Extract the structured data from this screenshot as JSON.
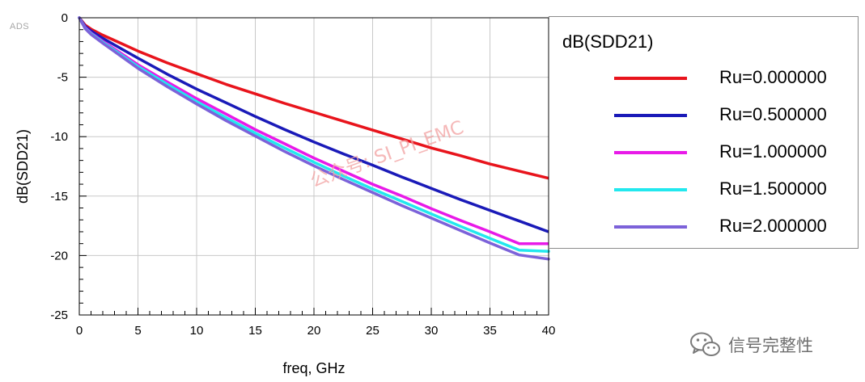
{
  "app_tag": "ADS",
  "footer_brand": "信号完整性",
  "overlay_watermark": "公众号: SI_PI_EMC",
  "chart_data": {
    "type": "line",
    "title": "",
    "xlabel": "freq, GHz",
    "ylabel": "dB(SDD21)",
    "xlim": [
      0,
      40
    ],
    "ylim": [
      -25,
      0
    ],
    "x_ticks": [
      0,
      5,
      10,
      15,
      20,
      25,
      30,
      35,
      40
    ],
    "y_ticks": [
      0,
      -5,
      -10,
      -15,
      -20,
      -25
    ],
    "grid": true,
    "legend": {
      "title": "dB(SDD21)",
      "position": "right"
    },
    "x": [
      0,
      0.5,
      1,
      2,
      3,
      5,
      7.5,
      10,
      12.5,
      15,
      17.5,
      20,
      22.5,
      25,
      27.5,
      30,
      32.5,
      35,
      37.5,
      40
    ],
    "series": [
      {
        "name": "Ru=0.000000",
        "color": "#e8141c",
        "values": [
          0,
          -0.62,
          -0.95,
          -1.46,
          -1.9,
          -2.8,
          -3.8,
          -4.7,
          -5.6,
          -6.4,
          -7.2,
          -7.95,
          -8.7,
          -9.45,
          -10.2,
          -10.95,
          -11.6,
          -12.3,
          -12.9,
          -13.5
        ]
      },
      {
        "name": "Ru=0.500000",
        "color": "#1a1ab8",
        "values": [
          0,
          -0.72,
          -1.1,
          -1.72,
          -2.28,
          -3.4,
          -4.75,
          -6.0,
          -7.15,
          -8.3,
          -9.4,
          -10.45,
          -11.45,
          -12.4,
          -13.4,
          -14.35,
          -15.3,
          -16.2,
          -17.1,
          -18.0
        ]
      },
      {
        "name": "Ru=1.000000",
        "color": "#e81ae8",
        "values": [
          0,
          -0.82,
          -1.28,
          -1.98,
          -2.62,
          -3.95,
          -5.4,
          -6.8,
          -8.1,
          -9.4,
          -10.6,
          -11.8,
          -12.9,
          -14.0,
          -15.0,
          -16.05,
          -17.05,
          -18.0,
          -19.0,
          -19.0
        ]
      },
      {
        "name": "Ru=1.500000",
        "color": "#22e8ee",
        "values": [
          0,
          -0.88,
          -1.34,
          -2.06,
          -2.74,
          -4.1,
          -5.6,
          -7.05,
          -8.4,
          -9.7,
          -10.95,
          -12.15,
          -13.3,
          -14.4,
          -15.45,
          -16.5,
          -17.55,
          -18.55,
          -19.55,
          -19.65
        ]
      },
      {
        "name": "Ru=2.000000",
        "color": "#7c62d9",
        "values": [
          0,
          -0.92,
          -1.4,
          -2.14,
          -2.84,
          -4.25,
          -5.8,
          -7.25,
          -8.65,
          -9.95,
          -11.25,
          -12.45,
          -13.6,
          -14.7,
          -15.8,
          -16.85,
          -17.9,
          -18.95,
          -19.95,
          -20.3
        ]
      }
    ]
  }
}
